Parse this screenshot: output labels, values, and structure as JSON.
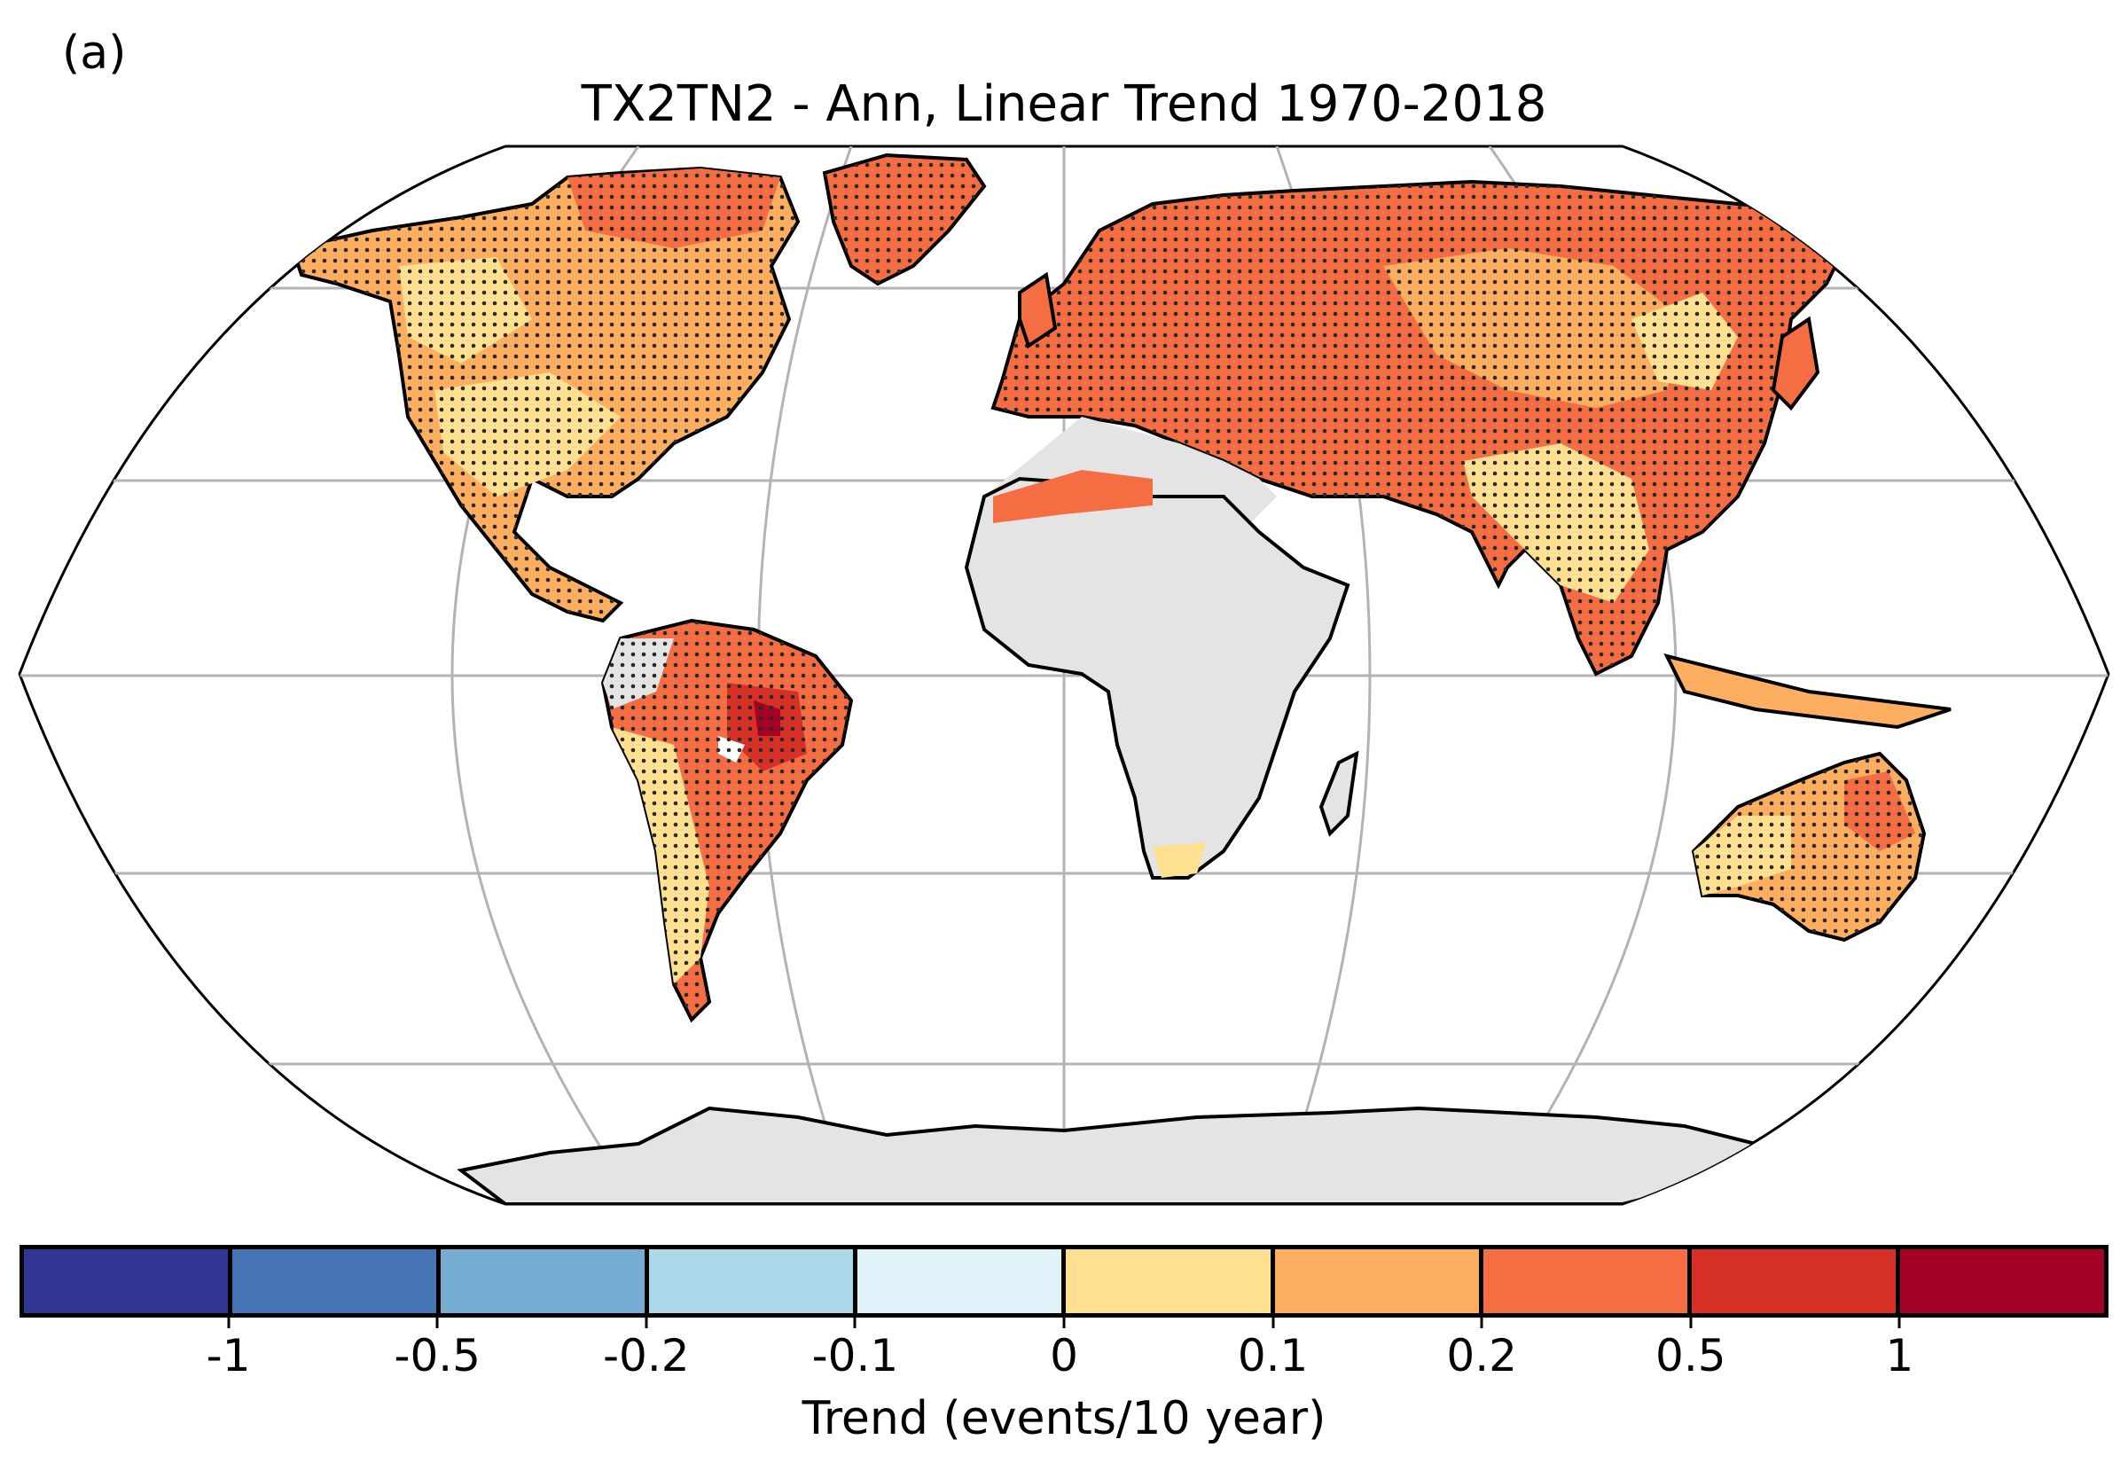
{
  "figure": {
    "panel_label": "(a)",
    "title": "TX2TN2 - Ann, Linear Trend 1970-2018",
    "projection": "Robinson",
    "hatching": "stippling indicates significant trend"
  },
  "colors": {
    "missing": "#e4e4e4",
    "ocean": "#ffffff",
    "coast": "#000000",
    "grid": "#b3b3b3"
  },
  "colorbar": {
    "label": "Trend (events/10 year)",
    "ticks": [
      "-1",
      "-0.5",
      "-0.2",
      "-0.1",
      "0",
      "0.1",
      "0.2",
      "0.5",
      "1"
    ],
    "bins": [
      {
        "range": "< -1",
        "color": "#313695"
      },
      {
        "range": "-1 to -0.5",
        "color": "#4575b4"
      },
      {
        "range": "-0.5 to -0.2",
        "color": "#74add1"
      },
      {
        "range": "-0.2 to -0.1",
        "color": "#abd9e9"
      },
      {
        "range": "-0.1 to 0",
        "color": "#e0f3f8"
      },
      {
        "range": "0 to 0.1",
        "color": "#fee090"
      },
      {
        "range": "0.1 to 0.2",
        "color": "#fdae61"
      },
      {
        "range": "0.2 to 0.5",
        "color": "#f46d43"
      },
      {
        "range": "0.5 to 1",
        "color": "#d73027"
      },
      {
        "range": "> 1",
        "color": "#a50026"
      }
    ]
  },
  "regions": [
    {
      "name": "north-america",
      "trend_bin": "0 to 0.2"
    },
    {
      "name": "greenland",
      "trend_bin": "0.2 to 0.5"
    },
    {
      "name": "south-america",
      "trend_bin": "0 to >1"
    },
    {
      "name": "europe",
      "trend_bin": "0.2 to 0.5"
    },
    {
      "name": "asia",
      "trend_bin": "0 to 0.5"
    },
    {
      "name": "africa",
      "trend_bin": "missing"
    },
    {
      "name": "australia",
      "trend_bin": "0 to 0.5"
    },
    {
      "name": "antarctica",
      "trend_bin": "missing"
    }
  ]
}
